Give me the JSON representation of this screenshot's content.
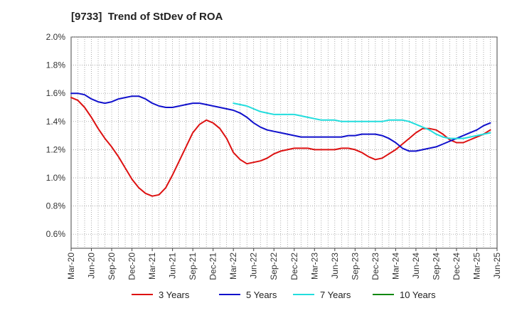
{
  "chart_data": {
    "type": "line",
    "title": "[9733]  Trend of StDev of ROA",
    "xlabel": "",
    "ylabel": "",
    "ylim": [
      0.5,
      2.0
    ],
    "yticks": [
      "0.6%",
      "0.8%",
      "1.0%",
      "1.2%",
      "1.4%",
      "1.6%",
      "1.8%",
      "2.0%"
    ],
    "ytick_values": [
      0.6,
      0.8,
      1.0,
      1.2,
      1.4,
      1.6,
      1.8,
      2.0
    ],
    "xticks": [
      "Mar-20",
      "Jun-20",
      "Sep-20",
      "Dec-20",
      "Mar-21",
      "Jun-21",
      "Sep-21",
      "Dec-21",
      "Mar-22",
      "Jun-22",
      "Sep-22",
      "Dec-22",
      "Mar-23",
      "Jun-23",
      "Sep-23",
      "Dec-23",
      "Mar-24",
      "Jun-24",
      "Sep-24",
      "Dec-24",
      "Mar-25",
      "Jun-25"
    ],
    "grid": true,
    "legend_position": "bottom",
    "series": [
      {
        "name": "3 Years",
        "color": "#dd1111",
        "start_month_index": 0,
        "values": [
          1.57,
          1.55,
          1.5,
          1.43,
          1.35,
          1.28,
          1.22,
          1.15,
          1.07,
          0.99,
          0.93,
          0.89,
          0.87,
          0.88,
          0.93,
          1.02,
          1.12,
          1.22,
          1.32,
          1.38,
          1.41,
          1.39,
          1.35,
          1.28,
          1.18,
          1.13,
          1.1,
          1.11,
          1.12,
          1.14,
          1.17,
          1.19,
          1.2,
          1.21,
          1.21,
          1.21,
          1.2,
          1.2,
          1.2,
          1.2,
          1.21,
          1.21,
          1.2,
          1.18,
          1.15,
          1.13,
          1.14,
          1.17,
          1.2,
          1.24,
          1.28,
          1.32,
          1.35,
          1.35,
          1.34,
          1.31,
          1.27,
          1.25,
          1.25,
          1.27,
          1.29,
          1.31,
          1.34
        ]
      },
      {
        "name": "5 Years",
        "color": "#1111cc",
        "start_month_index": 0,
        "values": [
          1.6,
          1.6,
          1.59,
          1.56,
          1.54,
          1.53,
          1.54,
          1.56,
          1.57,
          1.58,
          1.58,
          1.56,
          1.53,
          1.51,
          1.5,
          1.5,
          1.51,
          1.52,
          1.53,
          1.53,
          1.52,
          1.51,
          1.5,
          1.49,
          1.48,
          1.46,
          1.43,
          1.39,
          1.36,
          1.34,
          1.33,
          1.32,
          1.31,
          1.3,
          1.29,
          1.29,
          1.29,
          1.29,
          1.29,
          1.29,
          1.29,
          1.3,
          1.3,
          1.31,
          1.31,
          1.31,
          1.3,
          1.28,
          1.25,
          1.21,
          1.19,
          1.19,
          1.2,
          1.21,
          1.22,
          1.24,
          1.26,
          1.28,
          1.3,
          1.32,
          1.34,
          1.37,
          1.39
        ]
      },
      {
        "name": "7 Years",
        "color": "#22dddd",
        "start_month_index": 24,
        "values": [
          1.53,
          1.52,
          1.51,
          1.49,
          1.47,
          1.46,
          1.45,
          1.45,
          1.45,
          1.45,
          1.44,
          1.43,
          1.42,
          1.41,
          1.41,
          1.41,
          1.4,
          1.4,
          1.4,
          1.4,
          1.4,
          1.4,
          1.4,
          1.41,
          1.41,
          1.41,
          1.4,
          1.38,
          1.36,
          1.34,
          1.31,
          1.29,
          1.28,
          1.28,
          1.28,
          1.29,
          1.3,
          1.31,
          1.32
        ]
      },
      {
        "name": "10 Years",
        "color": "#118811",
        "start_month_index": 0,
        "values": []
      }
    ]
  }
}
